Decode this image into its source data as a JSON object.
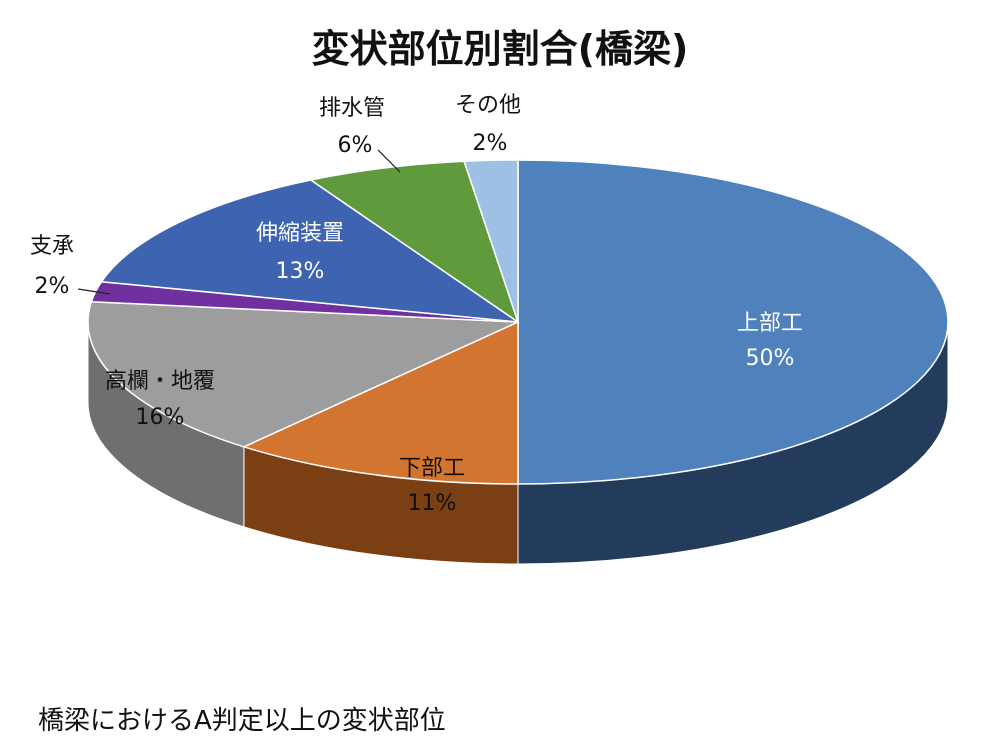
{
  "title": "変状部位別割合(橋梁)",
  "caption": "橋梁におけるA判定以上の変状部位",
  "chart_data": {
    "type": "pie",
    "title": "変状部位別割合(橋梁)",
    "style": "3d",
    "slices": [
      {
        "name": "上部工",
        "value": 50,
        "pct_label": "50%",
        "color": "#4f81bd",
        "side_color": "#243c5c"
      },
      {
        "name": "下部工",
        "value": 11,
        "pct_label": "11%",
        "color": "#d27530",
        "side_color": "#7a3f12"
      },
      {
        "name": "高欄・地覆",
        "value": 16,
        "pct_label": "16%",
        "color": "#9d9d9d",
        "side_color": "#6f6f6f"
      },
      {
        "name": "支承",
        "value": 2,
        "pct_label": "2%",
        "color": "#7030a0",
        "side_color": "#45186a"
      },
      {
        "name": "伸縮装置",
        "value": 13,
        "pct_label": "13%",
        "color": "#3e64b1",
        "side_color": "#1f3566"
      },
      {
        "name": "排水管",
        "value": 6,
        "pct_label": "6%",
        "color": "#5f9b3c",
        "side_color": "#355a1f"
      },
      {
        "name": "その他",
        "value": 2,
        "pct_label": "2%",
        "color": "#9ec0e4",
        "side_color": "#5e7fa3"
      }
    ]
  }
}
